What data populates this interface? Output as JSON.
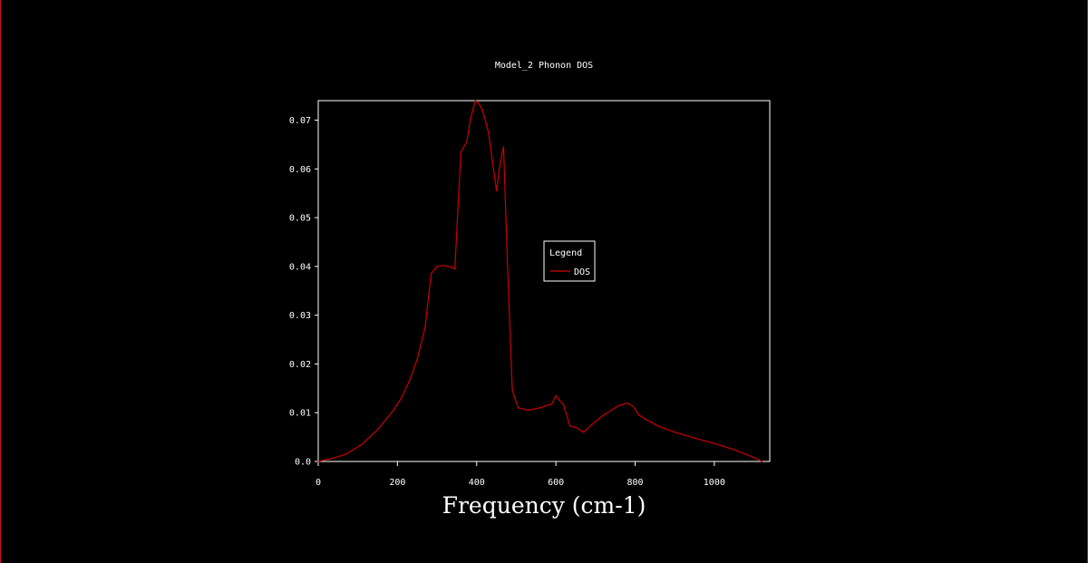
{
  "chart_data": {
    "type": "line",
    "title": "Model_2 Phonon DOS",
    "xlabel": "Frequency (cm-1)",
    "ylabel": "",
    "xlim": [
      0,
      1140
    ],
    "ylim": [
      0,
      0.074
    ],
    "x_ticks": [
      0,
      200,
      400,
      600,
      800,
      1000
    ],
    "x_tick_labels": [
      "0",
      "200",
      "400",
      "600",
      "800",
      "1000"
    ],
    "y_ticks": [
      0,
      0.01,
      0.02,
      0.03,
      0.04,
      0.05,
      0.06,
      0.07
    ],
    "y_tick_labels": [
      "0.0",
      "0.01",
      "0.02",
      "0.03",
      "0.04",
      "0.05",
      "0.06",
      "0.07"
    ],
    "grid": false,
    "legend": {
      "title": "Legend",
      "placement": "center-right"
    },
    "series": [
      {
        "name": "DOS",
        "color": "#cc0000",
        "x": [
          0,
          30,
          70,
          110,
          150,
          190,
          210,
          230,
          250,
          270,
          285,
          300,
          315,
          330,
          345,
          360,
          375,
          385,
          397,
          405,
          415,
          430,
          440,
          450,
          460,
          468,
          478,
          490,
          505,
          530,
          560,
          590,
          600,
          620,
          635,
          650,
          670,
          690,
          720,
          760,
          780,
          795,
          810,
          830,
          860,
          900,
          950,
          1000,
          1050,
          1100,
          1120
        ],
        "y": [
          0.0,
          0.0005,
          0.0015,
          0.0035,
          0.0065,
          0.0105,
          0.013,
          0.0165,
          0.021,
          0.0275,
          0.0385,
          0.04,
          0.0402,
          0.04,
          0.0395,
          0.0635,
          0.0655,
          0.0705,
          0.074,
          0.0735,
          0.072,
          0.0675,
          0.0615,
          0.0555,
          0.0615,
          0.0645,
          0.04,
          0.0145,
          0.011,
          0.0105,
          0.011,
          0.0118,
          0.0135,
          0.0115,
          0.0073,
          0.007,
          0.006,
          0.0075,
          0.0095,
          0.0115,
          0.012,
          0.0113,
          0.0095,
          0.0085,
          0.0072,
          0.006,
          0.0048,
          0.0037,
          0.0024,
          0.0008,
          0.0
        ]
      }
    ]
  }
}
